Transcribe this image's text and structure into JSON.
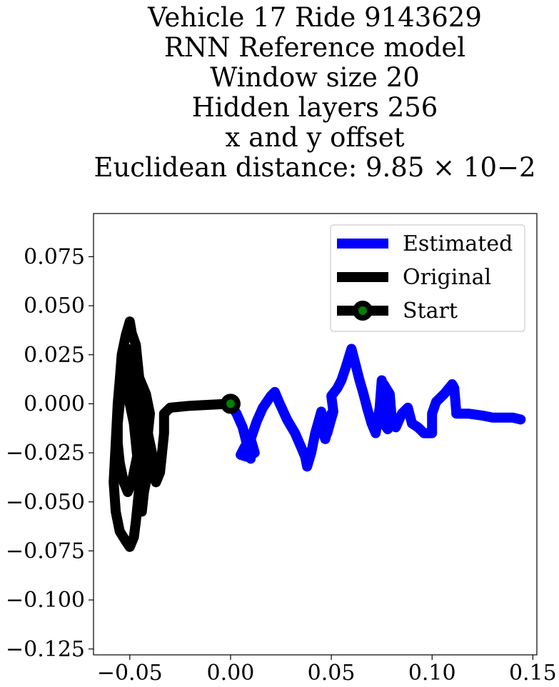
{
  "chart_data": {
    "type": "line",
    "title_lines": [
      "Vehicle 17 Ride 9143629",
      "RNN Reference model",
      "Window size 20",
      "Hidden layers 256",
      "x and y offset",
      "Euclidean distance: 9.85 × 10−2"
    ],
    "xlabel": "",
    "ylabel": "",
    "xlim": [
      -0.068,
      0.152
    ],
    "ylim": [
      -0.128,
      0.097
    ],
    "x_ticks": [
      -0.05,
      0.0,
      0.05,
      0.1,
      0.15
    ],
    "x_tick_labels": [
      "−0.05",
      "0.00",
      "0.05",
      "0.10",
      "0.15"
    ],
    "y_ticks": [
      0.075,
      0.05,
      0.025,
      0.0,
      -0.025,
      -0.05,
      -0.075,
      -0.1,
      -0.125
    ],
    "y_tick_labels": [
      "0.075",
      "0.050",
      "0.025",
      "0.000",
      "−0.025",
      "−0.050",
      "−0.075",
      "−0.100",
      "−0.125"
    ],
    "grid": false,
    "legend_position": "top-right",
    "series": [
      {
        "name": "Estimated",
        "color": "#0000ff",
        "x": [
          0.0,
          0.003,
          0.006,
          0.008,
          0.01,
          0.007,
          0.005,
          0.008,
          0.012,
          0.01,
          0.013,
          0.016,
          0.02,
          0.022,
          0.024,
          0.028,
          0.032,
          0.035,
          0.037,
          0.038,
          0.04,
          0.042,
          0.045,
          0.046,
          0.047,
          0.049,
          0.05,
          0.048,
          0.051,
          0.05,
          0.053,
          0.055,
          0.057,
          0.06,
          0.062,
          0.064,
          0.066,
          0.068,
          0.07,
          0.072,
          0.074,
          0.075,
          0.076,
          0.078,
          0.076,
          0.079,
          0.08,
          0.082,
          0.085,
          0.088,
          0.09,
          0.093,
          0.096,
          0.1,
          0.1,
          0.102,
          0.106,
          0.11,
          0.111,
          0.112,
          0.112,
          0.118,
          0.125,
          0.13,
          0.135,
          0.14,
          0.144
        ],
        "y": [
          0.0,
          -0.005,
          -0.012,
          -0.02,
          -0.028,
          -0.022,
          -0.026,
          -0.027,
          -0.025,
          -0.018,
          -0.009,
          -0.002,
          0.004,
          0.006,
          0.001,
          -0.008,
          -0.015,
          -0.022,
          -0.027,
          -0.032,
          -0.025,
          -0.015,
          -0.004,
          -0.015,
          -0.018,
          -0.01,
          -0.005,
          -0.015,
          -0.004,
          0.004,
          0.008,
          0.012,
          0.018,
          0.028,
          0.02,
          0.012,
          0.005,
          -0.003,
          -0.01,
          -0.015,
          -0.002,
          0.012,
          -0.01,
          -0.013,
          0.01,
          0.005,
          -0.008,
          -0.012,
          -0.005,
          -0.002,
          -0.01,
          -0.012,
          -0.015,
          -0.015,
          -0.005,
          0.001,
          0.005,
          0.01,
          0.008,
          -0.004,
          -0.005,
          -0.005,
          -0.006,
          -0.007,
          -0.007,
          -0.007,
          -0.008
        ]
      },
      {
        "name": "Original",
        "color": "#000000",
        "x": [
          0.0,
          -0.01,
          -0.02,
          -0.03,
          -0.033,
          -0.033,
          -0.034,
          -0.035,
          -0.037,
          -0.038,
          -0.04,
          -0.042,
          -0.044,
          -0.045,
          -0.046,
          -0.047,
          -0.049,
          -0.05,
          -0.052,
          -0.054,
          -0.055,
          -0.056,
          -0.057,
          -0.058,
          -0.057,
          -0.055,
          -0.052,
          -0.05,
          -0.048,
          -0.047,
          -0.046,
          -0.045,
          -0.046,
          -0.047,
          -0.048,
          -0.05,
          -0.052,
          -0.053,
          -0.054,
          -0.055,
          -0.056,
          -0.056,
          -0.055,
          -0.053,
          -0.051,
          -0.049,
          -0.047,
          -0.045,
          -0.043,
          -0.041,
          -0.04,
          -0.041,
          -0.043,
          -0.044,
          -0.045,
          -0.044,
          -0.043,
          -0.041,
          -0.04,
          -0.041,
          -0.042,
          -0.044,
          -0.046,
          -0.048,
          -0.05,
          -0.051,
          -0.051,
          -0.05,
          -0.049,
          -0.048,
          -0.047,
          -0.046,
          -0.045
        ],
        "y": [
          0.0,
          -0.0005,
          -0.001,
          -0.002,
          -0.005,
          -0.015,
          -0.025,
          -0.035,
          -0.04,
          -0.03,
          -0.02,
          -0.01,
          0.0,
          0.01,
          0.02,
          0.03,
          0.036,
          0.042,
          0.035,
          0.025,
          0.012,
          0.0,
          -0.02,
          -0.04,
          -0.055,
          -0.065,
          -0.07,
          -0.073,
          -0.068,
          -0.06,
          -0.05,
          -0.04,
          -0.03,
          -0.02,
          -0.01,
          0.0,
          0.01,
          0.015,
          0.01,
          0.0,
          -0.01,
          -0.02,
          -0.03,
          -0.04,
          -0.045,
          -0.04,
          -0.03,
          -0.02,
          -0.01,
          -0.015,
          -0.025,
          -0.035,
          -0.045,
          -0.055,
          -0.045,
          -0.035,
          -0.025,
          -0.015,
          -0.005,
          0.0,
          0.005,
          0.01,
          0.015,
          0.02,
          0.025,
          0.028,
          0.026,
          0.018,
          0.008,
          -0.002,
          -0.012,
          -0.022,
          -0.03
        ]
      }
    ],
    "start_point": {
      "name": "Start",
      "x": 0.0,
      "y": 0.0,
      "edge_color": "#000000",
      "face_color": "#008000"
    }
  }
}
